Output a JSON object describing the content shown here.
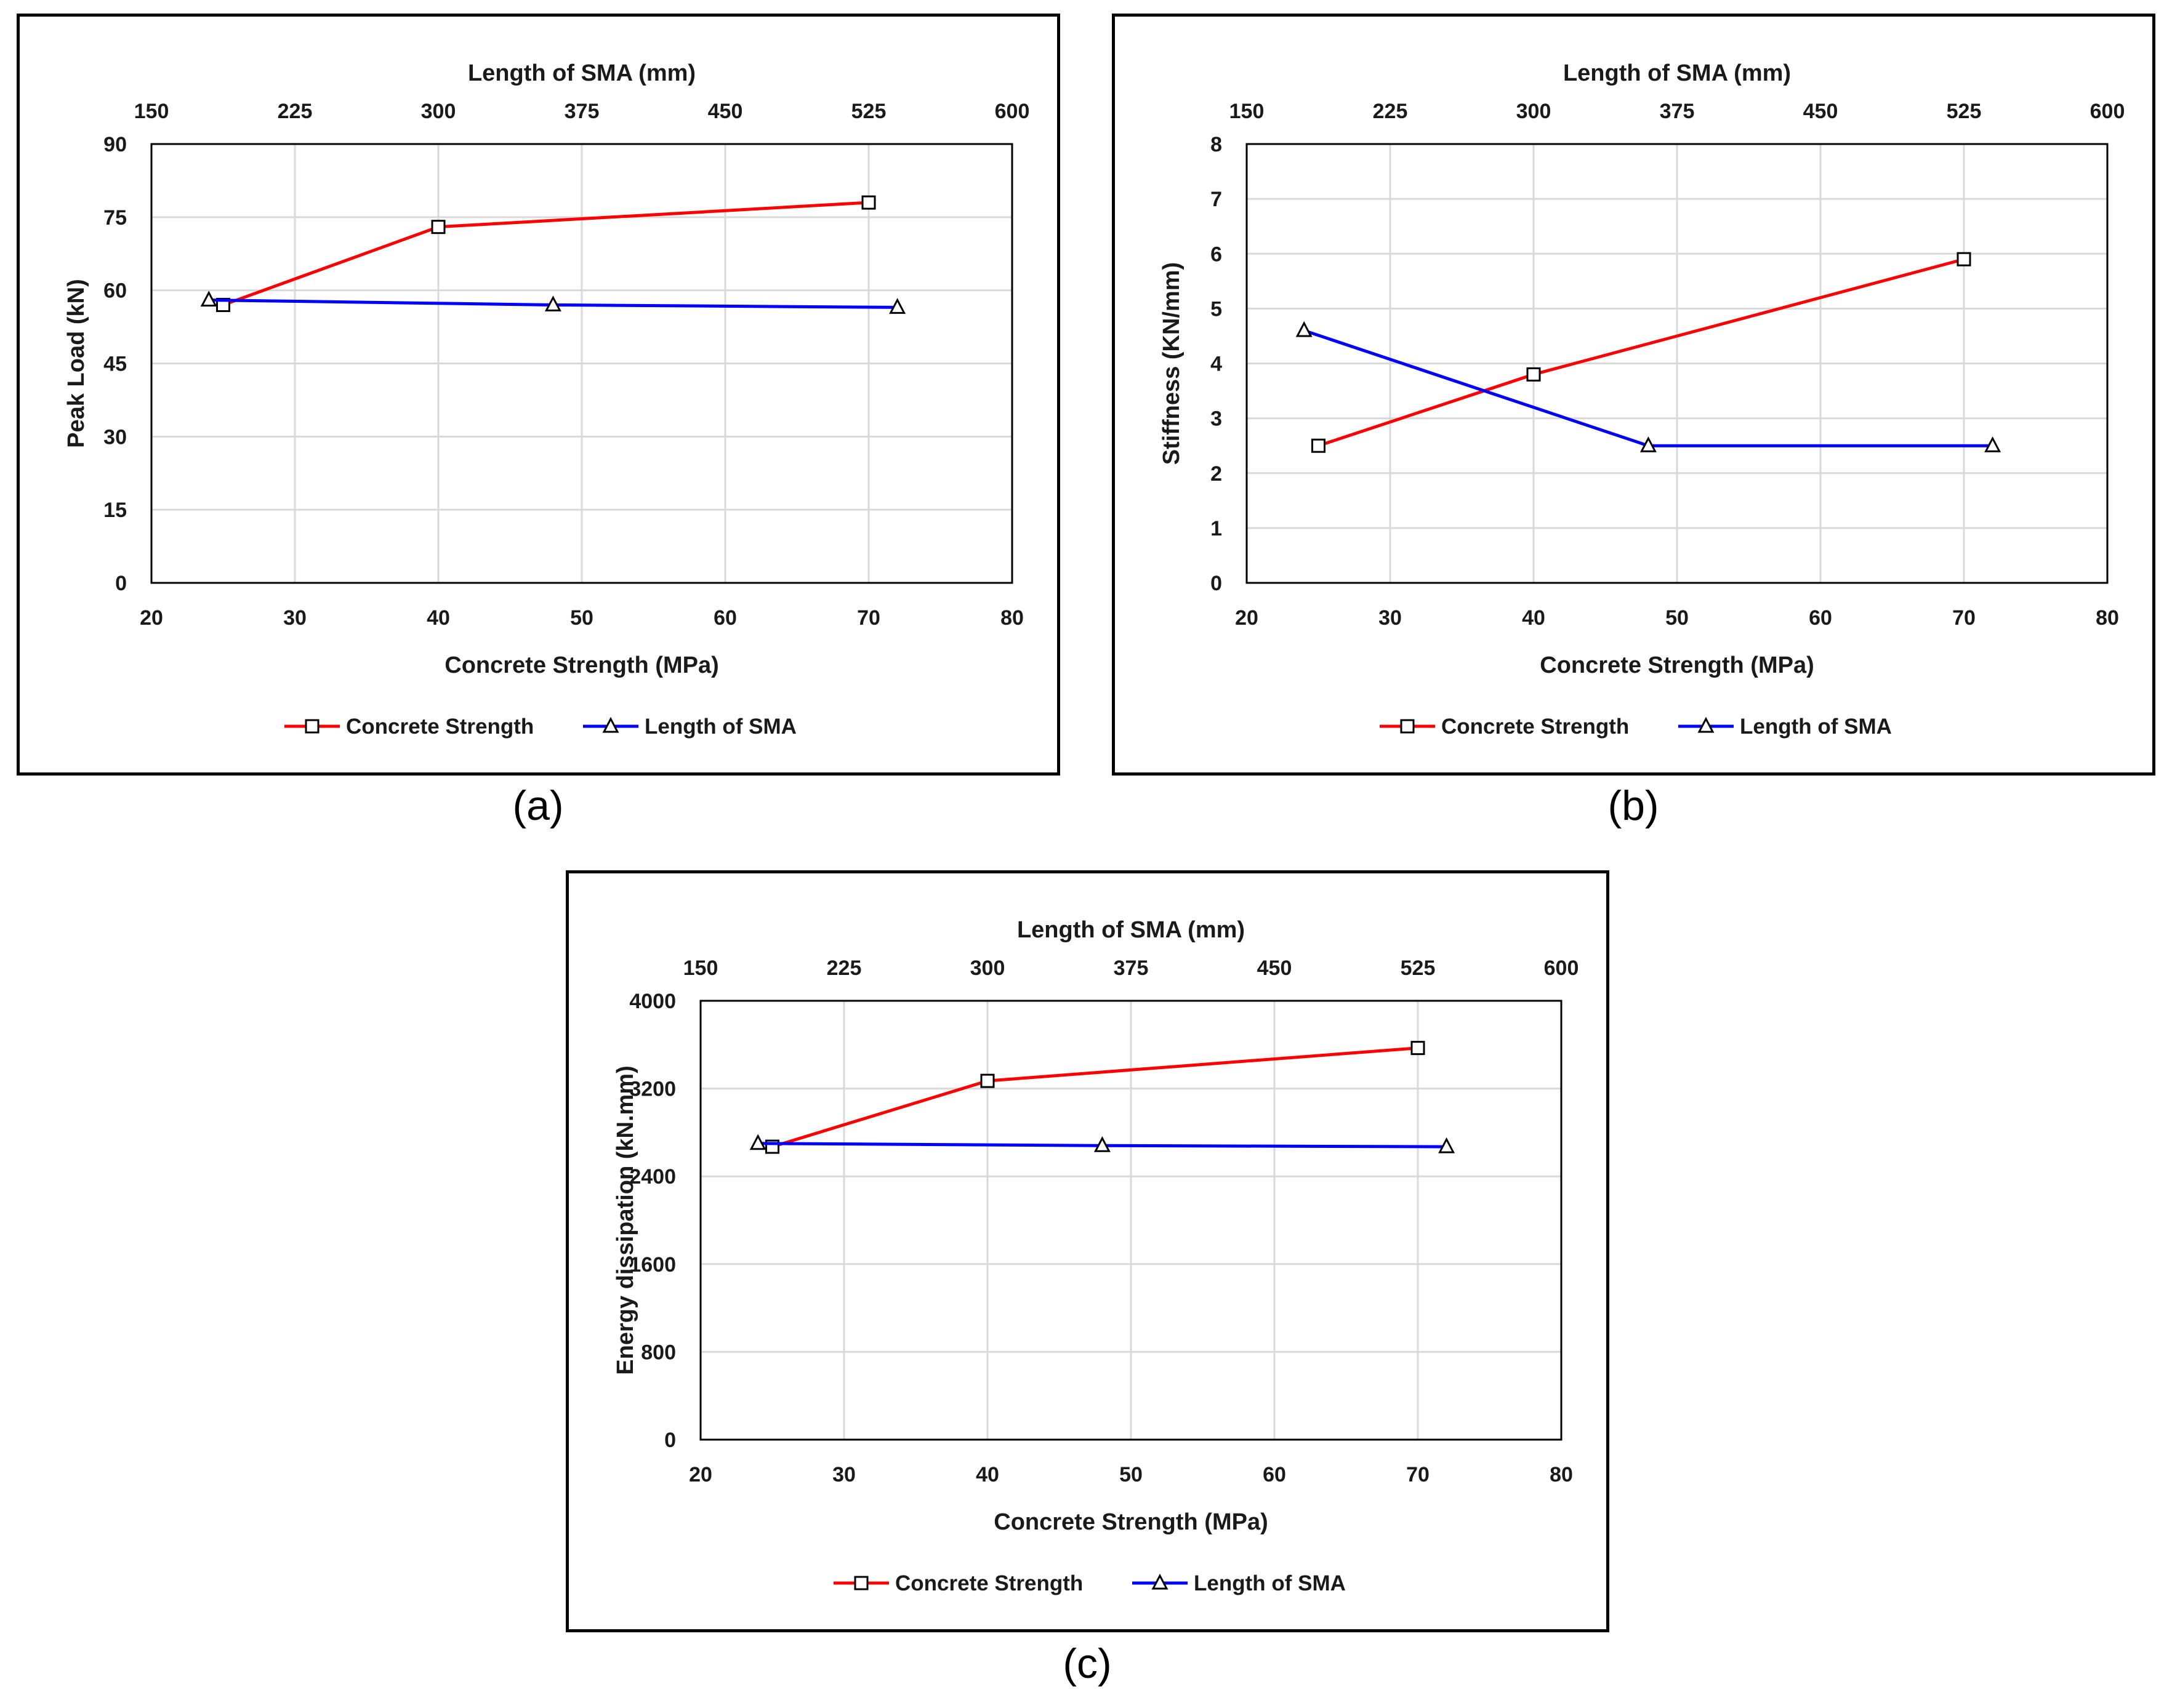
{
  "figure": {
    "captions": [
      "(a)",
      "(b)",
      "(c)"
    ]
  },
  "chart_data": [
    {
      "type": "line",
      "panel": "a",
      "xlabel": "Concrete Strength (MPa)",
      "x2label": "Length of SMA (mm)",
      "ylabel": "Peak Load (kN)",
      "xlim": [
        20,
        80
      ],
      "x2lim": [
        150,
        600
      ],
      "ylim": [
        0,
        90
      ],
      "xticks": [
        "20",
        "30",
        "40",
        "50",
        "60",
        "70",
        "80"
      ],
      "x2ticks": [
        "150",
        "225",
        "300",
        "375",
        "450",
        "525",
        "600"
      ],
      "yticks": [
        "0",
        "15",
        "30",
        "45",
        "60",
        "75",
        "90"
      ],
      "grid": true,
      "legend_position": "bottom",
      "series": [
        {
          "name": "Concrete Strength",
          "axis": "bottom",
          "color": "#ff0000",
          "marker": "square",
          "x": [
            25,
            40,
            70
          ],
          "y": [
            57,
            73,
            78
          ]
        },
        {
          "name": "Length of SMA",
          "axis": "top",
          "color": "#0000ff",
          "marker": "triangle",
          "x": [
            180,
            360,
            540
          ],
          "y": [
            58,
            57,
            56.5
          ]
        }
      ]
    },
    {
      "type": "line",
      "panel": "b",
      "xlabel": "Concrete Strength (MPa)",
      "x2label": "Length of SMA (mm)",
      "ylabel": "Stiffness (KN/mm)",
      "xlim": [
        20,
        80
      ],
      "x2lim": [
        150,
        600
      ],
      "ylim": [
        0,
        8
      ],
      "xticks": [
        "20",
        "30",
        "40",
        "50",
        "60",
        "70",
        "80"
      ],
      "x2ticks": [
        "150",
        "225",
        "300",
        "375",
        "450",
        "525",
        "600"
      ],
      "yticks": [
        "0",
        "1",
        "2",
        "3",
        "4",
        "5",
        "6",
        "7",
        "8"
      ],
      "grid": true,
      "legend_position": "bottom",
      "series": [
        {
          "name": "Concrete Strength",
          "axis": "bottom",
          "color": "#ff0000",
          "marker": "square",
          "x": [
            25,
            40,
            70
          ],
          "y": [
            2.5,
            3.8,
            5.9
          ]
        },
        {
          "name": "Length of SMA",
          "axis": "top",
          "color": "#0000ff",
          "marker": "triangle",
          "x": [
            180,
            360,
            540
          ],
          "y": [
            4.6,
            2.5,
            2.5
          ]
        }
      ]
    },
    {
      "type": "line",
      "panel": "c",
      "xlabel": "Concrete Strength (MPa)",
      "x2label": "Length of SMA (mm)",
      "ylabel": "Energy dissipation (kN.mm)",
      "xlim": [
        20,
        80
      ],
      "x2lim": [
        150,
        600
      ],
      "ylim": [
        0,
        4000
      ],
      "xticks": [
        "20",
        "30",
        "40",
        "50",
        "60",
        "70",
        "80"
      ],
      "x2ticks": [
        "150",
        "225",
        "300",
        "375",
        "450",
        "525",
        "600"
      ],
      "yticks": [
        "0",
        "800",
        "1600",
        "2400",
        "3200",
        "4000"
      ],
      "grid": true,
      "legend_position": "bottom",
      "series": [
        {
          "name": "Concrete Strength",
          "axis": "bottom",
          "color": "#ff0000",
          "marker": "square",
          "x": [
            25,
            40,
            70
          ],
          "y": [
            2670,
            3270,
            3570
          ]
        },
        {
          "name": "Length of SMA",
          "axis": "top",
          "color": "#0000ff",
          "marker": "triangle",
          "x": [
            180,
            360,
            540
          ],
          "y": [
            2700,
            2680,
            2670
          ]
        }
      ]
    }
  ]
}
